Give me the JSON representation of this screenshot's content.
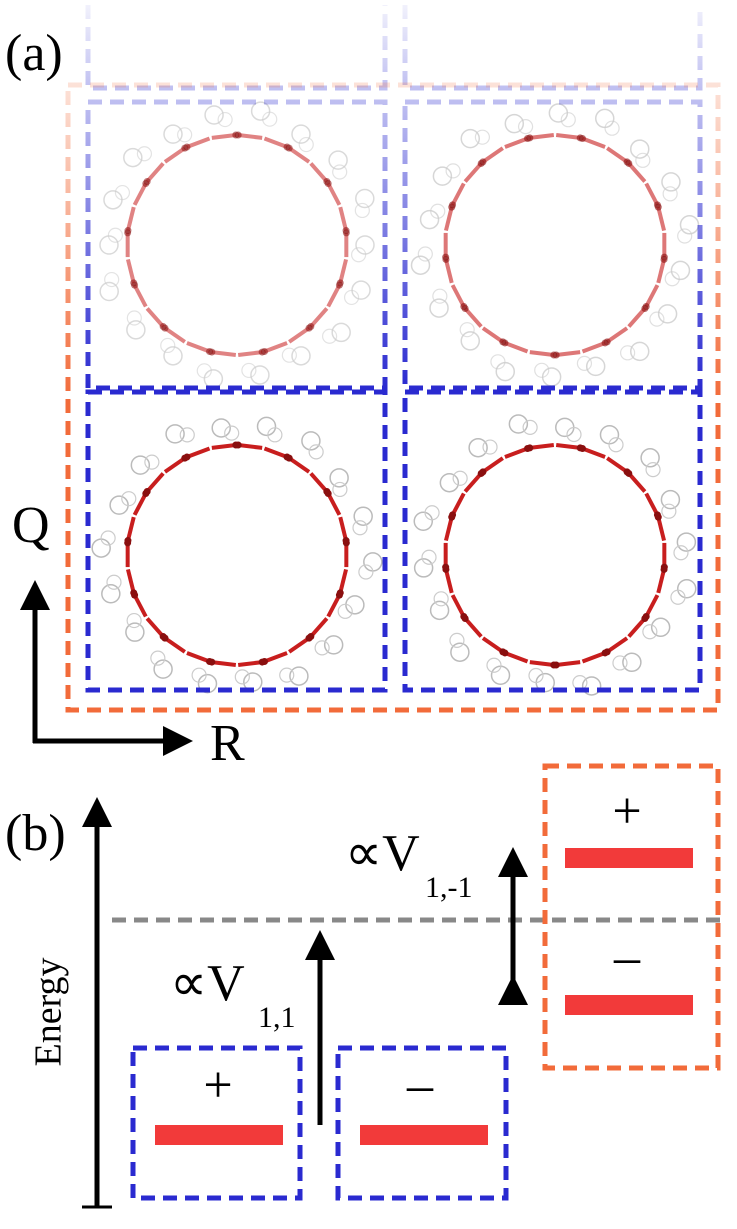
{
  "panel_a": {
    "label": "(a)",
    "axes": {
      "vertical": "Q",
      "horizontal": "R"
    }
  },
  "panel_b": {
    "label": "(b)",
    "axis_label": "Energy",
    "coupling_labels": [
      {
        "symbol": "∝V",
        "subscript": "1,1"
      },
      {
        "symbol": "∝V",
        "subscript": "1,-1"
      }
    ],
    "states": [
      {
        "sign": "+"
      },
      {
        "sign": "–"
      },
      {
        "sign": "+"
      },
      {
        "sign": "–"
      }
    ]
  }
}
